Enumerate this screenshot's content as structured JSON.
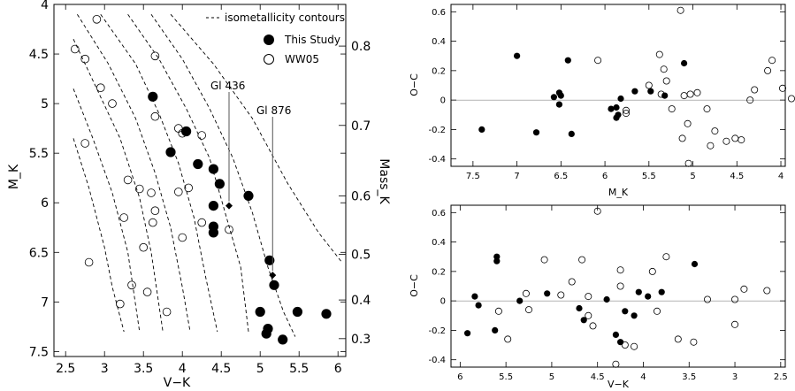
{
  "chart_data": [
    {
      "type": "scatter",
      "title": "",
      "xlabel": "V−K",
      "ylabel": "M_K",
      "y2label": "Mass_K",
      "xlim": [
        2.35,
        6.1
      ],
      "ylim": [
        7.55,
        4.0
      ],
      "xticks": [
        2.5,
        3,
        3.5,
        4,
        4.5,
        5,
        5.5,
        6
      ],
      "xtick_labels": [
        "2.5",
        "3",
        "3.5",
        "4",
        "4.5",
        "5",
        "5.5",
        "6"
      ],
      "yticks": [
        4,
        4.5,
        5,
        5.5,
        6,
        6.5,
        7,
        7.5
      ],
      "ytick_labels": [
        "4",
        "4.5",
        "5",
        "5.5",
        "6",
        "6.5",
        "7",
        "7.5"
      ],
      "mass_ticks": [
        {
          "mk": 4.42,
          "label": "0.8"
        },
        {
          "mk": 5.22,
          "label": "0.7"
        },
        {
          "mk": 5.93,
          "label": "0.6"
        },
        {
          "mk": 6.52,
          "label": "0.5"
        },
        {
          "mk": 6.98,
          "label": "0.4"
        },
        {
          "mk": 7.37,
          "label": "0.3"
        }
      ],
      "legend": {
        "position": "top-right",
        "entries": [
          {
            "marker": "dashed-line",
            "label": "isometallicity contours"
          },
          {
            "marker": "filled-circle",
            "label": "This Study"
          },
          {
            "marker": "open-circle",
            "label": "WW05"
          }
        ]
      },
      "annotations": [
        {
          "label": "Gl 436",
          "x": 4.6,
          "y": 6.03
        },
        {
          "label": "Gl 876",
          "x": 5.16,
          "y": 6.73
        }
      ],
      "contours": [
        [
          [
            2.6,
            5.35
          ],
          [
            2.8,
            5.85
          ],
          [
            3.0,
            6.45
          ],
          [
            3.1,
            6.85
          ],
          [
            3.25,
            7.3
          ]
        ],
        [
          [
            2.6,
            4.85
          ],
          [
            2.85,
            5.35
          ],
          [
            3.1,
            5.9
          ],
          [
            3.3,
            6.5
          ],
          [
            3.45,
            7.3
          ]
        ],
        [
          [
            2.6,
            4.35
          ],
          [
            2.9,
            4.85
          ],
          [
            3.2,
            5.35
          ],
          [
            3.45,
            5.95
          ],
          [
            3.6,
            6.5
          ],
          [
            3.75,
            7.3
          ]
        ],
        [
          [
            2.65,
            4.1
          ],
          [
            3.05,
            4.6
          ],
          [
            3.4,
            5.15
          ],
          [
            3.65,
            5.7
          ],
          [
            3.85,
            6.25
          ],
          [
            4.0,
            6.85
          ],
          [
            4.1,
            7.3
          ]
        ],
        [
          [
            2.95,
            4.1
          ],
          [
            3.4,
            4.6
          ],
          [
            3.7,
            5.1
          ],
          [
            3.95,
            5.6
          ],
          [
            4.15,
            6.15
          ],
          [
            4.3,
            6.75
          ],
          [
            4.45,
            7.3
          ]
        ],
        [
          [
            3.3,
            4.1
          ],
          [
            3.7,
            4.55
          ],
          [
            4.05,
            5.05
          ],
          [
            4.35,
            5.55
          ],
          [
            4.55,
            6.1
          ],
          [
            4.75,
            6.65
          ],
          [
            4.85,
            7.3
          ]
        ],
        [
          [
            3.6,
            4.1
          ],
          [
            4.0,
            4.55
          ],
          [
            4.35,
            5.05
          ],
          [
            4.65,
            5.55
          ],
          [
            4.9,
            6.1
          ],
          [
            5.1,
            6.65
          ],
          [
            5.3,
            7.1
          ],
          [
            5.45,
            7.35
          ]
        ],
        [
          [
            3.85,
            4.1
          ],
          [
            4.4,
            4.6
          ],
          [
            4.9,
            5.15
          ],
          [
            5.35,
            5.8
          ],
          [
            5.75,
            6.3
          ],
          [
            6.05,
            6.6
          ]
        ]
      ],
      "series": [
        {
          "name": "This Study",
          "marker": "filled",
          "points": [
            [
              3.62,
              4.93
            ],
            [
              4.05,
              5.28
            ],
            [
              3.85,
              5.49
            ],
            [
              4.2,
              5.61
            ],
            [
              4.4,
              5.66
            ],
            [
              4.48,
              5.81
            ],
            [
              4.4,
              6.03
            ],
            [
              4.4,
              6.24
            ],
            [
              4.4,
              6.3
            ],
            [
              4.85,
              5.93
            ],
            [
              5.12,
              6.58
            ],
            [
              5.18,
              6.83
            ],
            [
              5.0,
              7.1
            ],
            [
              5.1,
              7.27
            ],
            [
              5.08,
              7.32
            ],
            [
              5.29,
              7.38
            ],
            [
              5.48,
              7.1
            ],
            [
              5.85,
              7.12
            ]
          ]
        },
        {
          "name": "WW05",
          "marker": "open",
          "points": [
            [
              2.62,
              4.45
            ],
            [
              2.9,
              4.15
            ],
            [
              2.75,
              4.55
            ],
            [
              2.95,
              4.84
            ],
            [
              3.1,
              5.0
            ],
            [
              3.65,
              4.52
            ],
            [
              3.65,
              5.13
            ],
            [
              3.95,
              5.25
            ],
            [
              4.0,
              5.3
            ],
            [
              4.25,
              5.32
            ],
            [
              3.95,
              5.89
            ],
            [
              3.65,
              6.08
            ],
            [
              4.08,
              5.85
            ],
            [
              4.25,
              6.2
            ],
            [
              4.0,
              6.35
            ],
            [
              4.6,
              6.27
            ],
            [
              3.3,
              5.77
            ],
            [
              3.45,
              5.86
            ],
            [
              3.6,
              5.9
            ],
            [
              3.62,
              6.2
            ],
            [
              2.75,
              5.4
            ],
            [
              3.25,
              6.15
            ],
            [
              3.5,
              6.45
            ],
            [
              2.8,
              6.6
            ],
            [
              3.35,
              6.83
            ],
            [
              3.55,
              6.9
            ],
            [
              3.2,
              7.02
            ],
            [
              3.8,
              7.1
            ]
          ]
        }
      ],
      "special_points": [
        [
          4.6,
          6.03
        ],
        [
          5.16,
          6.73
        ]
      ]
    },
    {
      "type": "scatter",
      "title": "",
      "xlabel": "M_K",
      "ylabel": "O−C",
      "xlim": [
        7.75,
        3.95
      ],
      "ylim": [
        -0.45,
        0.65
      ],
      "xticks": [
        7.5,
        7,
        6.5,
        6,
        5.5,
        5,
        4.5,
        4
      ],
      "xtick_labels": [
        "7.5",
        "7",
        "6.5",
        "6",
        "5.5",
        "5",
        "4.5",
        "4"
      ],
      "yticks": [
        -0.4,
        -0.2,
        0,
        0.2,
        0.4,
        0.6
      ],
      "ytick_labels": [
        "-0.4",
        "-0.2",
        "0",
        "0.2",
        "0.4",
        "0.6"
      ],
      "series": [
        {
          "name": "This Study",
          "marker": "filled",
          "points": [
            [
              7.4,
              -0.2
            ],
            [
              7.0,
              0.3
            ],
            [
              6.78,
              -0.22
            ],
            [
              6.58,
              0.02
            ],
            [
              6.52,
              0.05
            ],
            [
              6.5,
              0.03
            ],
            [
              6.52,
              -0.03
            ],
            [
              6.42,
              0.27
            ],
            [
              6.38,
              -0.23
            ],
            [
              5.93,
              -0.06
            ],
            [
              5.87,
              -0.05
            ],
            [
              5.87,
              -0.12
            ],
            [
              5.85,
              -0.1
            ],
            [
              5.82,
              0.01
            ],
            [
              5.66,
              0.06
            ],
            [
              5.48,
              0.06
            ],
            [
              5.32,
              0.03
            ],
            [
              5.1,
              0.25
            ]
          ]
        },
        {
          "name": "WW05",
          "marker": "open",
          "points": [
            [
              6.08,
              0.27
            ],
            [
              5.76,
              -0.07
            ],
            [
              5.76,
              -0.09
            ],
            [
              5.5,
              0.1
            ],
            [
              5.38,
              0.31
            ],
            [
              5.36,
              0.04
            ],
            [
              5.33,
              0.21
            ],
            [
              5.3,
              0.13
            ],
            [
              5.24,
              -0.06
            ],
            [
              5.14,
              0.61
            ],
            [
              5.12,
              -0.26
            ],
            [
              5.1,
              0.03
            ],
            [
              5.06,
              -0.16
            ],
            [
              5.05,
              -0.43
            ],
            [
              5.03,
              0.04
            ],
            [
              4.95,
              0.05
            ],
            [
              4.84,
              -0.06
            ],
            [
              4.75,
              -0.21
            ],
            [
              4.62,
              -0.28
            ],
            [
              4.52,
              -0.26
            ],
            [
              4.45,
              -0.27
            ],
            [
              4.35,
              0.0
            ],
            [
              4.3,
              0.07
            ],
            [
              4.15,
              0.2
            ],
            [
              4.1,
              0.27
            ],
            [
              3.98,
              0.08
            ],
            [
              3.88,
              0.01
            ],
            [
              4.8,
              -0.31
            ]
          ]
        }
      ]
    },
    {
      "type": "scatter",
      "title": "",
      "xlabel": "V−K",
      "ylabel": "O−C",
      "xlim": [
        6.1,
        2.45
      ],
      "ylim": [
        -0.45,
        0.65
      ],
      "xticks": [
        6,
        5.5,
        5,
        4.5,
        4,
        3.5,
        3,
        2.5
      ],
      "xtick_labels": [
        "6",
        "5.5",
        "5",
        "4.5",
        "4",
        "3.5",
        "3",
        "2.5"
      ],
      "yticks": [
        -0.4,
        -0.2,
        0,
        0.2,
        0.4,
        0.6
      ],
      "ytick_labels": [
        "-0.4",
        "-0.2",
        "0",
        "0.2",
        "0.4",
        "0.6"
      ],
      "series": [
        {
          "name": "This Study",
          "marker": "filled",
          "points": [
            [
              5.92,
              -0.22
            ],
            [
              5.84,
              0.03
            ],
            [
              5.8,
              -0.03
            ],
            [
              5.62,
              -0.2
            ],
            [
              5.6,
              0.3
            ],
            [
              5.6,
              0.27
            ],
            [
              5.35,
              0.0
            ],
            [
              5.05,
              0.05
            ],
            [
              4.7,
              -0.05
            ],
            [
              4.65,
              -0.13
            ],
            [
              4.4,
              0.01
            ],
            [
              4.3,
              -0.23
            ],
            [
              4.25,
              -0.28
            ],
            [
              4.2,
              -0.07
            ],
            [
              4.1,
              -0.1
            ],
            [
              4.05,
              0.06
            ],
            [
              3.95,
              0.03
            ],
            [
              3.8,
              0.06
            ],
            [
              3.44,
              0.25
            ]
          ]
        },
        {
          "name": "WW05",
          "marker": "open",
          "points": [
            [
              5.58,
              -0.07
            ],
            [
              5.48,
              -0.26
            ],
            [
              5.28,
              0.05
            ],
            [
              5.25,
              -0.06
            ],
            [
              5.08,
              0.28
            ],
            [
              4.9,
              0.04
            ],
            [
              4.78,
              0.13
            ],
            [
              4.67,
              0.28
            ],
            [
              4.6,
              0.03
            ],
            [
              4.55,
              -0.17
            ],
            [
              4.5,
              0.61
            ],
            [
              4.3,
              -0.43
            ],
            [
              4.25,
              0.21
            ],
            [
              4.25,
              0.1
            ],
            [
              4.2,
              -0.3
            ],
            [
              4.1,
              -0.31
            ],
            [
              3.9,
              0.2
            ],
            [
              3.85,
              -0.07
            ],
            [
              3.75,
              0.3
            ],
            [
              3.62,
              -0.26
            ],
            [
              3.45,
              -0.28
            ],
            [
              3.3,
              0.01
            ],
            [
              3.0,
              0.01
            ],
            [
              3.0,
              -0.16
            ],
            [
              2.9,
              0.08
            ],
            [
              2.65,
              0.07
            ],
            [
              4.6,
              -0.1
            ]
          ]
        }
      ]
    }
  ]
}
